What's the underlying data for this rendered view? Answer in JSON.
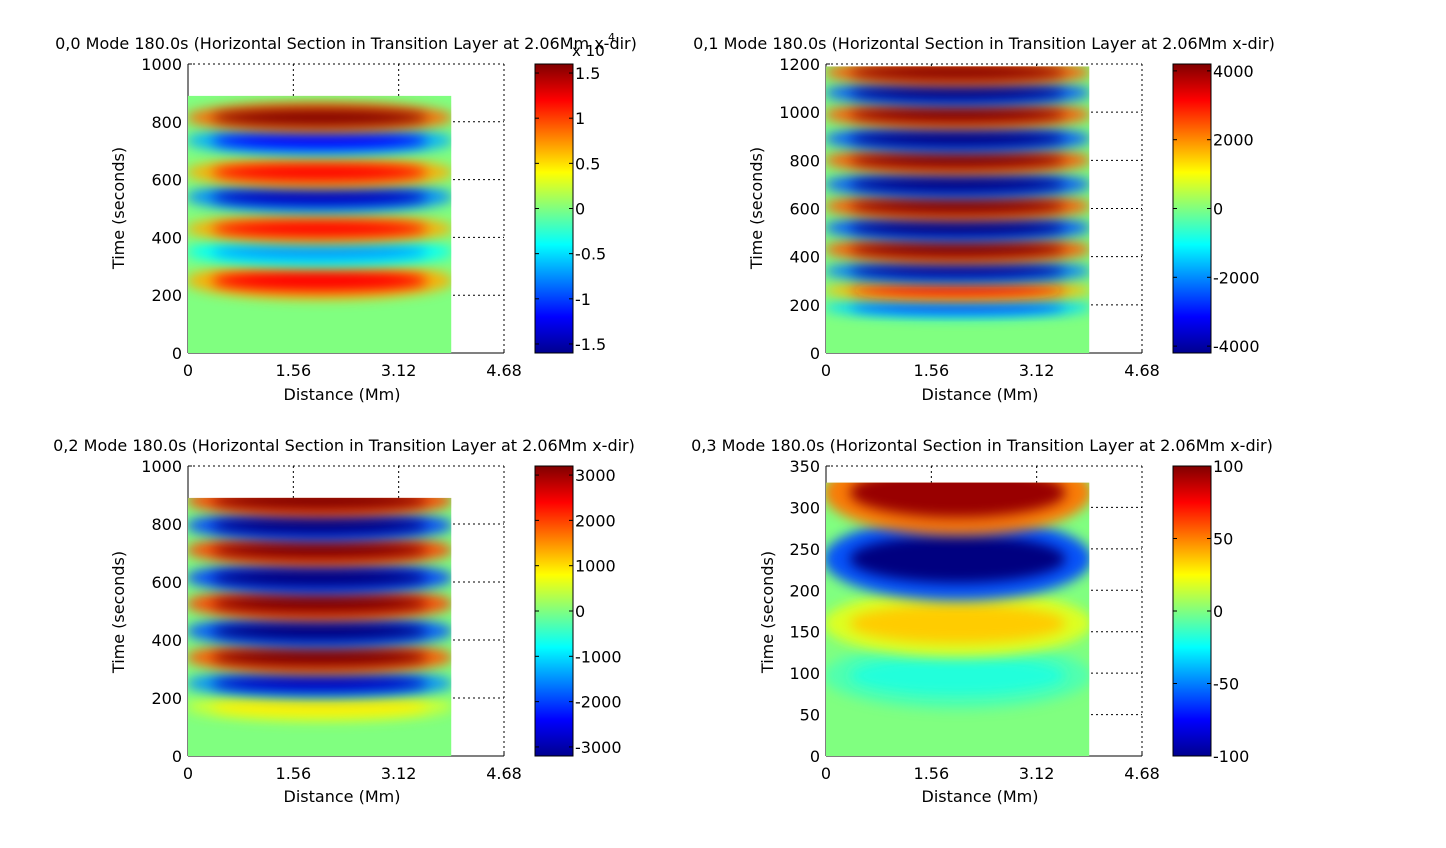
{
  "figure": {
    "panels": [
      {
        "title": "0,0 Mode 180.0s (Horizontal Section in Transition Layer at 2.06Mm  x-dir)",
        "xlabel": "Distance (Mm)",
        "ylabel": "Time (seconds)",
        "xticks": [
          "0",
          "1.56",
          "3.12",
          "4.68"
        ],
        "yticks": [
          "0",
          "200",
          "400",
          "600",
          "800",
          "1000"
        ],
        "colorbar_ticks": [
          "-1.5",
          "-1",
          "-0.5",
          "0",
          "0.5",
          "1",
          "1.5"
        ],
        "colorbar_exponent": "x 10",
        "colorbar_exponent_power": "4"
      },
      {
        "title": "0,1 Mode 180.0s (Horizontal Section in Transition Layer at 2.06Mm  x-dir)",
        "xlabel": "Distance (Mm)",
        "ylabel": "Time (seconds)",
        "xticks": [
          "0",
          "1.56",
          "3.12",
          "4.68"
        ],
        "yticks": [
          "0",
          "200",
          "400",
          "600",
          "800",
          "1000",
          "1200"
        ],
        "colorbar_ticks": [
          "-4000",
          "-2000",
          "0",
          "2000",
          "4000"
        ]
      },
      {
        "title": "0,2 Mode 180.0s (Horizontal Section in Transition Layer at 2.06Mm  x-dir)",
        "xlabel": "Distance (Mm)",
        "ylabel": "Time (seconds)",
        "xticks": [
          "0",
          "1.56",
          "3.12",
          "4.68"
        ],
        "yticks": [
          "0",
          "200",
          "400",
          "600",
          "800",
          "1000"
        ],
        "colorbar_ticks": [
          "-3000",
          "-2000",
          "-1000",
          "0",
          "1000",
          "2000",
          "3000"
        ]
      },
      {
        "title": "0,3 Mode 180.0s (Horizontal Section in Transition Layer at 2.06Mm  x-dir)",
        "xlabel": "Distance (Mm)",
        "ylabel": "Time (seconds)",
        "xticks": [
          "0",
          "1.56",
          "3.12",
          "4.68"
        ],
        "yticks": [
          "0",
          "50",
          "100",
          "150",
          "200",
          "250",
          "300",
          "350"
        ],
        "colorbar_ticks": [
          "-100",
          "-50",
          "0",
          "50",
          "100"
        ]
      }
    ]
  },
  "chart_data": [
    {
      "type": "heatmap",
      "title": "0,0 Mode 180.0s (Horizontal Section in Transition Layer at 2.06Mm  x-dir)",
      "xlabel": "Distance (Mm)",
      "ylabel": "Time (seconds)",
      "xlim": [
        0,
        4.68
      ],
      "ylim": [
        0,
        1000
      ],
      "data_extent": {
        "x": [
          0,
          3.9
        ],
        "y": [
          0,
          890
        ]
      },
      "color_range": [
        -16000,
        16000
      ],
      "colormap": "jet",
      "bands": [
        {
          "time": 250,
          "value": 12000
        },
        {
          "time": 350,
          "value": -7000
        },
        {
          "time": 430,
          "value": 12000
        },
        {
          "time": 540,
          "value": -14000
        },
        {
          "time": 625,
          "value": 12000
        },
        {
          "time": 735,
          "value": -12000
        },
        {
          "time": 815,
          "value": 16000
        }
      ]
    },
    {
      "type": "heatmap",
      "title": "0,1 Mode 180.0s (Horizontal Section in Transition Layer at 2.06Mm  x-dir)",
      "xlabel": "Distance (Mm)",
      "ylabel": "Time (seconds)",
      "xlim": [
        0,
        4.68
      ],
      "ylim": [
        0,
        1200
      ],
      "data_extent": {
        "x": [
          0,
          3.9
        ],
        "y": [
          0,
          1190
        ]
      },
      "color_range": [
        -4200,
        4200
      ],
      "colormap": "jet",
      "bands": [
        {
          "time": 190,
          "value": -2500
        },
        {
          "time": 260,
          "value": 3000
        },
        {
          "time": 340,
          "value": -4000
        },
        {
          "time": 430,
          "value": 4500
        },
        {
          "time": 520,
          "value": -4500
        },
        {
          "time": 610,
          "value": 4500
        },
        {
          "time": 700,
          "value": -4500
        },
        {
          "time": 800,
          "value": 4500
        },
        {
          "time": 890,
          "value": -4500
        },
        {
          "time": 990,
          "value": 4500
        },
        {
          "time": 1080,
          "value": -4500
        },
        {
          "time": 1165,
          "value": 4500
        }
      ]
    },
    {
      "type": "heatmap",
      "title": "0,2 Mode 180.0s (Horizontal Section in Transition Layer at 2.06Mm  x-dir)",
      "xlabel": "Distance (Mm)",
      "ylabel": "Time (seconds)",
      "xlim": [
        0,
        4.68
      ],
      "ylim": [
        0,
        1000
      ],
      "data_extent": {
        "x": [
          0,
          3.9
        ],
        "y": [
          0,
          890
        ]
      },
      "color_range": [
        -3200,
        3200
      ],
      "colormap": "jet",
      "bands": [
        {
          "time": 170,
          "value": 900
        },
        {
          "time": 250,
          "value": -2800
        },
        {
          "time": 340,
          "value": 3400
        },
        {
          "time": 430,
          "value": -3400
        },
        {
          "time": 525,
          "value": 3600
        },
        {
          "time": 615,
          "value": -3600
        },
        {
          "time": 710,
          "value": 3600
        },
        {
          "time": 795,
          "value": -3600
        },
        {
          "time": 880,
          "value": 3600
        }
      ]
    },
    {
      "type": "heatmap",
      "title": "0,3 Mode 180.0s (Horizontal Section in Transition Layer at 2.06Mm  x-dir)",
      "xlabel": "Distance (Mm)",
      "ylabel": "Time (seconds)",
      "xlim": [
        0,
        4.68
      ],
      "ylim": [
        0,
        350
      ],
      "data_extent": {
        "x": [
          0,
          3.9
        ],
        "y": [
          0,
          330
        ]
      },
      "color_range": [
        -100,
        100
      ],
      "colormap": "jet",
      "bands": [
        {
          "time": 97,
          "value": -18
        },
        {
          "time": 160,
          "value": 35
        },
        {
          "time": 238,
          "value": -110
        },
        {
          "time": 318,
          "value": 95
        }
      ]
    }
  ]
}
